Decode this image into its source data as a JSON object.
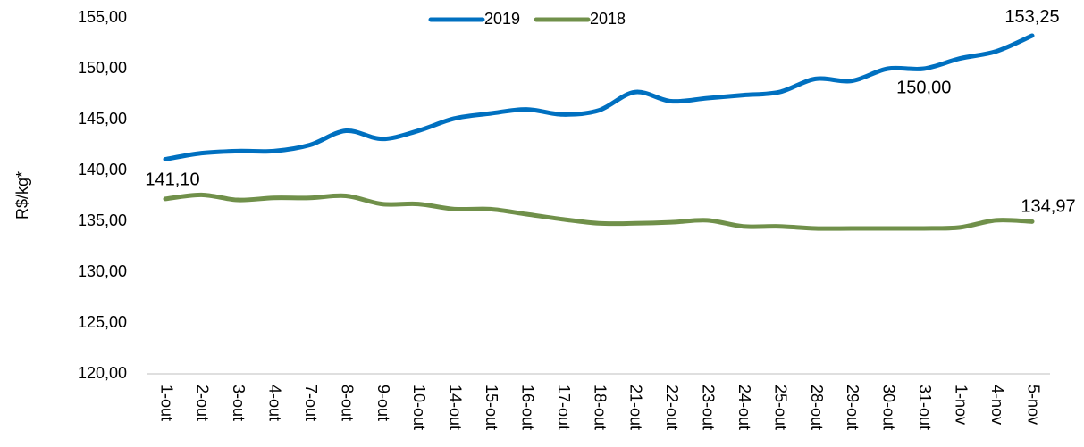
{
  "chart_data": {
    "type": "line",
    "y_label": "R$/kg*",
    "categories": [
      "1-out",
      "2-out",
      "3-out",
      "4-out",
      "7-out",
      "8-out",
      "9-out",
      "10-out",
      "14-out",
      "15-out",
      "16-out",
      "17-out",
      "18-out",
      "21-out",
      "22-out",
      "23-out",
      "24-out",
      "25-out",
      "28-out",
      "29-out",
      "30-out",
      "31-out",
      "1-nov",
      "4-nov",
      "5-nov"
    ],
    "series": [
      {
        "name": "2019",
        "color": "#0070c0",
        "values": [
          141.1,
          141.7,
          141.9,
          141.9,
          142.5,
          143.9,
          143.1,
          143.9,
          145.1,
          145.6,
          146.0,
          145.5,
          145.9,
          147.7,
          146.8,
          147.1,
          147.4,
          147.7,
          149.0,
          148.8,
          150.0,
          150.0,
          151.0,
          151.7,
          153.25
        ],
        "value_labels": [
          "141,10",
          null,
          null,
          null,
          null,
          null,
          null,
          null,
          null,
          null,
          null,
          null,
          null,
          null,
          null,
          null,
          null,
          null,
          null,
          null,
          null,
          "150,00",
          null,
          null,
          "153,25"
        ]
      },
      {
        "name": "2018",
        "color": "#70904a",
        "values": [
          137.2,
          137.6,
          137.1,
          137.3,
          137.3,
          137.5,
          136.7,
          136.7,
          136.2,
          136.2,
          135.7,
          135.2,
          134.8,
          134.8,
          134.9,
          135.1,
          134.5,
          134.5,
          134.3,
          134.3,
          134.3,
          134.3,
          134.4,
          135.1,
          134.97
        ],
        "value_labels": [
          null,
          null,
          null,
          null,
          null,
          null,
          null,
          null,
          null,
          null,
          null,
          null,
          null,
          null,
          null,
          null,
          null,
          null,
          null,
          null,
          null,
          null,
          null,
          null,
          "134,97"
        ]
      }
    ],
    "ylim": [
      120,
      155
    ],
    "yticks": [
      {
        "value": 120,
        "label": "120,00"
      },
      {
        "value": 125,
        "label": "125,00"
      },
      {
        "value": 130,
        "label": "130,00"
      },
      {
        "value": 135,
        "label": "135,00"
      },
      {
        "value": 140,
        "label": "140,00"
      },
      {
        "value": 145,
        "label": "145,00"
      },
      {
        "value": 150,
        "label": "150,00"
      },
      {
        "value": 155,
        "label": "155,00"
      }
    ],
    "grid": false,
    "legend": "top"
  }
}
